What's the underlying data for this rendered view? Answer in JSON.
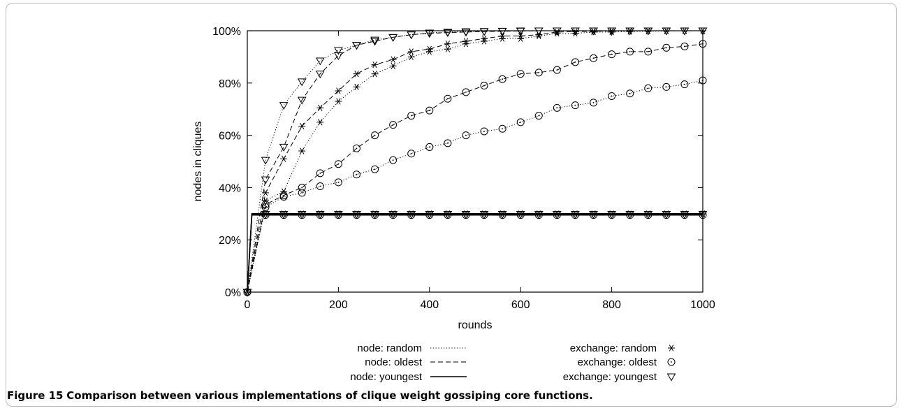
{
  "caption": {
    "label": "Figure 15",
    "text": "Comparison between various implementations of clique weight gossiping core functions."
  },
  "chart_data": {
    "type": "line",
    "title": "",
    "xlabel": "rounds",
    "ylabel": "nodes in cliques",
    "xlim": [
      0,
      1000
    ],
    "ylim": [
      0,
      100
    ],
    "x_ticks": [
      "0",
      "200",
      "400",
      "600",
      "800",
      "1000"
    ],
    "y_ticks": [
      "0%",
      "20%",
      "40%",
      "60%",
      "80%",
      "100%"
    ],
    "grid": false,
    "legend_position": "bottom",
    "legend_line_styles": [
      {
        "name": "node: random",
        "dash": "dotted"
      },
      {
        "name": "node: oldest",
        "dash": "dashed"
      },
      {
        "name": "node: youngest",
        "dash": "solid"
      }
    ],
    "legend_markers": [
      {
        "name": "exchange: random",
        "marker": "asterisk"
      },
      {
        "name": "exchange: oldest",
        "marker": "circle"
      },
      {
        "name": "exchange: youngest",
        "marker": "triangle-down"
      }
    ],
    "reference_line": {
      "y": 100,
      "dash": "dotted"
    },
    "series": [
      {
        "node": "random",
        "exchange": "random",
        "dash": "dotted",
        "marker": "asterisk",
        "x": [
          0,
          40,
          80,
          120,
          160,
          200,
          240,
          280,
          320,
          360,
          400,
          440,
          480,
          520,
          560,
          600,
          640,
          680,
          720,
          760,
          800,
          840,
          880,
          920,
          960,
          1000
        ],
        "y": [
          0,
          35,
          38.5,
          54,
          65,
          73,
          78.5,
          83.5,
          86.5,
          90,
          92,
          93,
          95,
          96,
          97,
          97,
          98,
          99,
          99,
          99.5,
          99.5,
          99.7,
          99.8,
          99.9,
          100,
          100
        ]
      },
      {
        "node": "oldest",
        "exchange": "random",
        "dash": "dashed",
        "marker": "asterisk",
        "x": [
          0,
          40,
          80,
          120,
          160,
          200,
          240,
          280,
          320,
          360,
          400,
          440,
          480,
          520,
          560,
          600,
          640,
          680,
          720,
          760,
          800,
          840,
          880,
          920,
          960,
          1000
        ],
        "y": [
          0,
          38,
          51,
          63.5,
          70.5,
          77,
          83.5,
          87,
          89,
          92,
          93,
          95,
          96,
          97,
          98,
          98,
          98.5,
          99.5,
          99.7,
          99.8,
          99.9,
          100,
          100,
          100,
          100,
          100
        ]
      },
      {
        "node": "youngest",
        "exchange": "random",
        "dash": "solid",
        "marker": "asterisk",
        "x": [
          0,
          10,
          40,
          80,
          120,
          160,
          200,
          240,
          280,
          320,
          360,
          400,
          440,
          480,
          520,
          560,
          600,
          640,
          680,
          720,
          760,
          800,
          840,
          880,
          920,
          960,
          1000
        ],
        "y": [
          0,
          30,
          30,
          30,
          30,
          30,
          30,
          30,
          30,
          30,
          30,
          30,
          30,
          30,
          30,
          30,
          30,
          30,
          30,
          30,
          30,
          30,
          30,
          30,
          30,
          30,
          30
        ]
      },
      {
        "node": "random",
        "exchange": "oldest",
        "dash": "dotted",
        "marker": "circle",
        "x": [
          0,
          40,
          80,
          120,
          160,
          200,
          240,
          280,
          320,
          360,
          400,
          440,
          480,
          520,
          560,
          600,
          640,
          680,
          720,
          760,
          800,
          840,
          880,
          920,
          960,
          1000
        ],
        "y": [
          0,
          32.5,
          36.5,
          38,
          40.5,
          42,
          45,
          47,
          50.5,
          53,
          55.5,
          57,
          60,
          61.5,
          62.5,
          65,
          67.5,
          70.5,
          71.5,
          72.5,
          75,
          76,
          78,
          78.5,
          79.5,
          81
        ]
      },
      {
        "node": "oldest",
        "exchange": "oldest",
        "dash": "dashed",
        "marker": "circle",
        "x": [
          0,
          40,
          80,
          120,
          160,
          200,
          240,
          280,
          320,
          360,
          400,
          440,
          480,
          520,
          560,
          600,
          640,
          680,
          720,
          760,
          800,
          840,
          880,
          920,
          960,
          1000
        ],
        "y": [
          0,
          33.5,
          37,
          40,
          45.5,
          49,
          55,
          60,
          64,
          67.5,
          69.5,
          74,
          76.5,
          79,
          81.5,
          83.5,
          84,
          85,
          88,
          89.5,
          91,
          92,
          92,
          93.5,
          94,
          95
        ]
      },
      {
        "node": "youngest",
        "exchange": "oldest",
        "dash": "solid",
        "marker": "circle",
        "x": [
          0,
          10,
          40,
          80,
          120,
          160,
          200,
          240,
          280,
          320,
          360,
          400,
          440,
          480,
          520,
          560,
          600,
          640,
          680,
          720,
          760,
          800,
          840,
          880,
          920,
          960,
          1000
        ],
        "y": [
          0,
          29.5,
          29.5,
          29.5,
          29.5,
          29.5,
          29.5,
          29.5,
          29.5,
          29.5,
          29.5,
          29.5,
          29.5,
          29.5,
          29.5,
          29.5,
          29.5,
          29.5,
          29.5,
          29.5,
          29.5,
          29.5,
          29.5,
          29.5,
          29.5,
          29.5,
          29.5
        ]
      },
      {
        "node": "random",
        "exchange": "youngest",
        "dash": "dotted",
        "marker": "triangle-down",
        "x": [
          0,
          40,
          80,
          120,
          160,
          200,
          240,
          280,
          320,
          360,
          400,
          440,
          480,
          520,
          560,
          600,
          640,
          680,
          720,
          760,
          800,
          840,
          880,
          920,
          960,
          1000
        ],
        "y": [
          0,
          50.5,
          71.5,
          80.5,
          88.5,
          92.5,
          94.5,
          96.5,
          97.5,
          98.5,
          99.2,
          99.5,
          99.7,
          99.8,
          99.9,
          100,
          100,
          100,
          100,
          100,
          100,
          100,
          100,
          100,
          100,
          100
        ]
      },
      {
        "node": "oldest",
        "exchange": "youngest",
        "dash": "dashed",
        "marker": "triangle-down",
        "x": [
          0,
          40,
          80,
          120,
          160,
          200,
          240,
          280,
          320,
          360,
          400,
          440,
          480,
          520,
          560,
          600,
          640,
          680,
          720,
          760,
          800,
          840,
          880,
          920,
          960,
          1000
        ],
        "y": [
          0,
          43,
          55.5,
          73.5,
          83.5,
          90.5,
          94.5,
          96,
          97.5,
          98.5,
          99,
          99.3,
          99.5,
          99.7,
          99.8,
          99.9,
          100,
          100,
          100,
          100,
          100,
          100,
          100,
          100,
          100,
          100
        ]
      },
      {
        "node": "youngest",
        "exchange": "youngest",
        "dash": "solid",
        "marker": "triangle-down",
        "x": [
          0,
          10,
          40,
          80,
          120,
          160,
          200,
          240,
          280,
          320,
          360,
          400,
          440,
          480,
          520,
          560,
          600,
          640,
          680,
          720,
          760,
          800,
          840,
          880,
          920,
          960,
          1000
        ],
        "y": [
          0,
          29.8,
          29.8,
          29.8,
          29.8,
          29.8,
          29.8,
          29.8,
          29.8,
          29.8,
          29.8,
          29.8,
          29.8,
          29.8,
          29.8,
          29.8,
          29.8,
          29.8,
          29.8,
          29.8,
          29.8,
          29.8,
          29.8,
          29.8,
          29.8,
          29.8,
          29.8
        ]
      }
    ]
  }
}
